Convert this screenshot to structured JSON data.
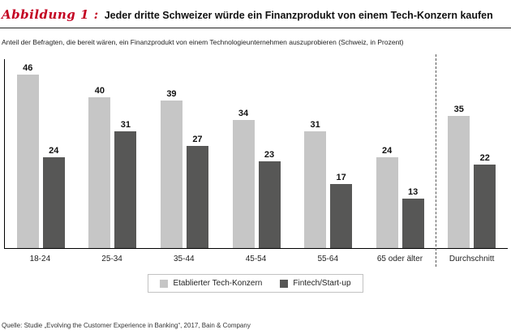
{
  "header": {
    "figure_label": "Abbildung 1 :",
    "title": "Jeder dritte Schweizer würde ein Finanzprodukt von einem Tech-Konzern kaufen"
  },
  "subtitle": "Anteil der Befragten, die bereit wären, ein Finanzprodukt von einem Technologieunternehmen auszuprobieren (Schweiz, in Prozent)",
  "source": "Quelle: Studie „Evolving the Customer Experience in Banking“, 2017, Bain & Company",
  "legend": [
    {
      "label": "Etablierter Tech-Konzern",
      "color": "#c6c6c6"
    },
    {
      "label": "Fintech/Start-up",
      "color": "#575756"
    }
  ],
  "chart_data": {
    "type": "bar",
    "categories": [
      "18-24",
      "25-34",
      "35-44",
      "45-54",
      "55-64",
      "65 oder älter",
      "Durchschnitt"
    ],
    "series": [
      {
        "name": "Etablierter Tech-Konzern",
        "color": "#c6c6c6",
        "values": [
          46,
          40,
          39,
          34,
          31,
          24,
          35
        ]
      },
      {
        "name": "Fintech/Start-up",
        "color": "#575756",
        "values": [
          24,
          31,
          27,
          23,
          17,
          13,
          22
        ]
      }
    ],
    "ylim": [
      0,
      50
    ],
    "grid": false,
    "legend_position": "bottom",
    "value_labels": true,
    "separator_before_last_category": true
  }
}
